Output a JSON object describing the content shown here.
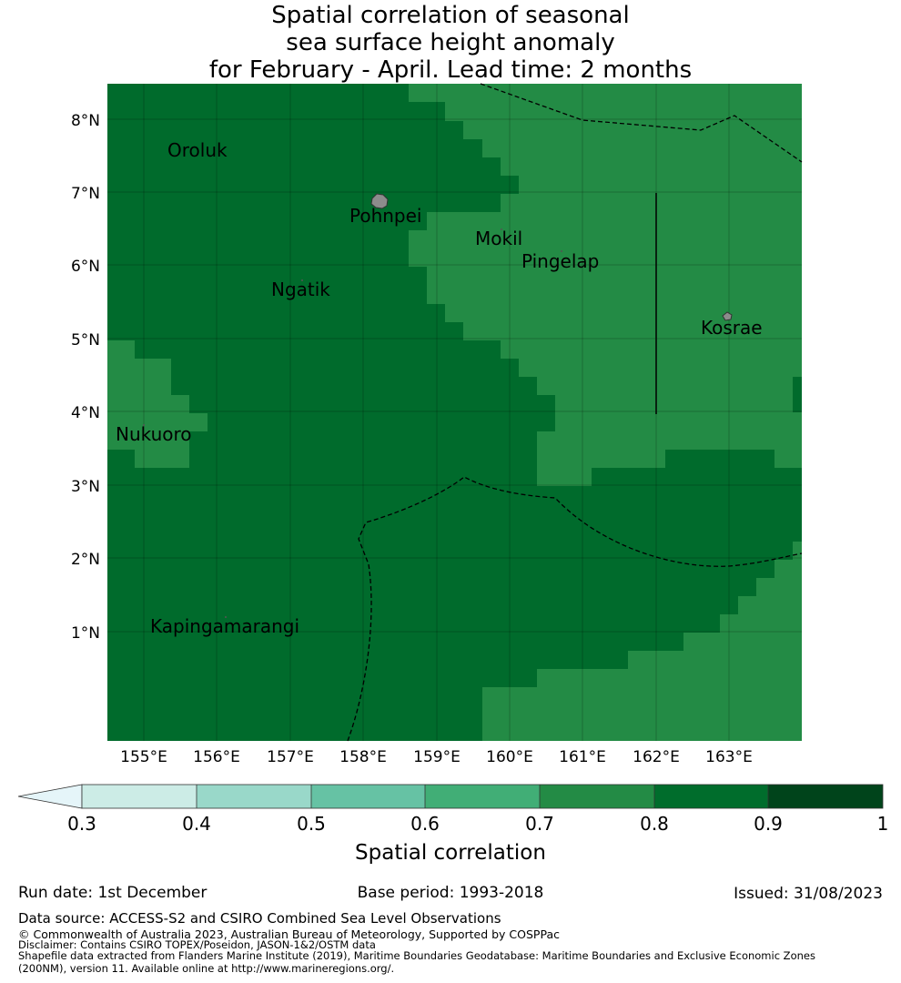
{
  "title": {
    "line1": "Spatial correlation of seasonal",
    "line2": "sea surface height anomaly",
    "line3": "for February - April. Lead time: 2 months"
  },
  "map": {
    "lon_ticks": [
      "155°E",
      "156°E",
      "157°E",
      "158°E",
      "159°E",
      "160°E",
      "161°E",
      "162°E",
      "163°E"
    ],
    "lat_ticks": [
      "8°N",
      "7°N",
      "6°N",
      "5°N",
      "4°N",
      "3°N",
      "2°N",
      "1°N"
    ],
    "places": [
      "Oroluk",
      "Pohnpei",
      "Mokil",
      "Pingelap",
      "Ngatik",
      "Kosrae",
      "Nukuoro",
      "Kapingamarangi"
    ],
    "colors": {
      "band_0_8_0_9": "#006b2c",
      "band_0_7_0_8": "#238b45",
      "land": "#8c8c8c"
    }
  },
  "colorbar": {
    "ticks": [
      "0.3",
      "0.4",
      "0.5",
      "0.6",
      "0.7",
      "0.8",
      "0.9",
      "1"
    ],
    "colors": [
      "#e5f5f9",
      "#ccece6",
      "#99d8c9",
      "#66c2a4",
      "#41ae76",
      "#238b45",
      "#006d2c",
      "#00441b"
    ],
    "label": "Spatial correlation"
  },
  "footer": {
    "run_date": "Run date: 1st December",
    "base_period": "Base period: 1993-2018",
    "issued": "Issued: 31/08/2023",
    "data_source": "Data source: ACCESS-S2 and CSIRO Combined Sea Level Observations",
    "copyright": "© Commonwealth of Australia 2023, Australian Bureau of Meteorology, Supported by COSPPac",
    "disclaimer": "Disclaimer: Contains CSIRO TOPEX/Poseidon, JASON-1&2/OSTM data",
    "shapefile_1": "Shapefile data extracted from Flanders Marine Institute (2019), Maritime Boundaries Geodatabase: Maritime Boundaries and Exclusive Economic Zones",
    "shapefile_2": "(200NM), version 11. Available online at http://www.marineregions.org/."
  }
}
